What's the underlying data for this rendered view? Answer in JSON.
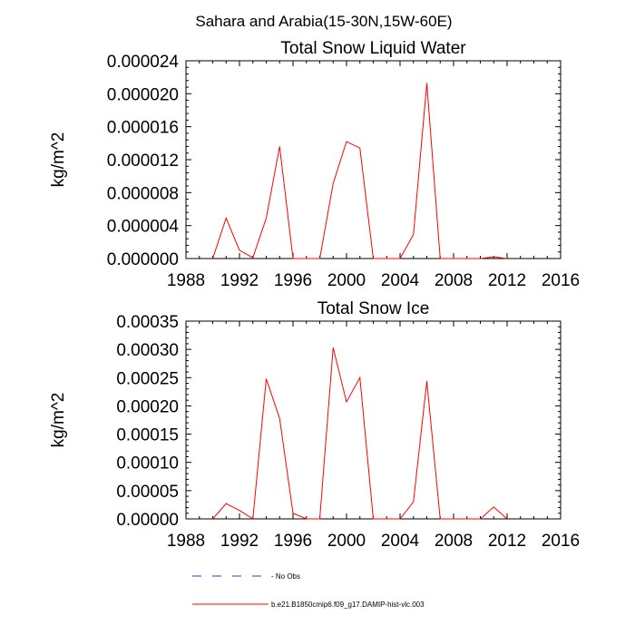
{
  "figure": {
    "title": "Sahara and Arabia(15-30N,15W-60E)"
  },
  "chart_data": [
    {
      "type": "line",
      "title": "Total Snow Liquid Water",
      "xlabel": "",
      "ylabel": "kg/m^2",
      "xlim": [
        1988,
        2016
      ],
      "ylim": [
        0,
        2.4e-05
      ],
      "x_ticks": [
        "1988",
        "1992",
        "1996",
        "2000",
        "2004",
        "2008",
        "2012",
        "2016"
      ],
      "y_ticks": [
        "0.000000",
        "0.000004",
        "0.000008",
        "0.000012",
        "0.000016",
        "0.000020",
        "0.000024"
      ],
      "series": [
        {
          "name": "b.e21.B1850cmip6.f09_g17.DAMIP-hist-vlc.003",
          "color": "#ff0000",
          "x": [
            1990,
            1991,
            1992,
            1993,
            1994,
            1995,
            1996,
            1997,
            1998,
            1999,
            2000,
            2001,
            2002,
            2003,
            2004,
            2005,
            2006,
            2007,
            2008,
            2009,
            2010,
            2011,
            2012
          ],
          "y": [
            0.0,
            4.9e-06,
            1e-06,
            1e-07,
            4.9e-06,
            1.36e-05,
            0.0,
            0.0,
            0.0,
            9.1e-06,
            1.42e-05,
            1.34e-05,
            0.0,
            0.0,
            0.0,
            2.9e-06,
            2.13e-05,
            0.0,
            0.0,
            0.0,
            0.0,
            2e-07,
            0.0
          ]
        }
      ]
    },
    {
      "type": "line",
      "title": "Total Snow Ice",
      "xlabel": "",
      "ylabel": "kg/m^2",
      "xlim": [
        1988,
        2016
      ],
      "ylim": [
        0,
        0.00035
      ],
      "x_ticks": [
        "1988",
        "1992",
        "1996",
        "2000",
        "2004",
        "2008",
        "2012",
        "2016"
      ],
      "y_ticks": [
        "0.00000",
        "0.00005",
        "0.00010",
        "0.00015",
        "0.00020",
        "0.00025",
        "0.00030",
        "0.00035"
      ],
      "series": [
        {
          "name": "b.e21.B1850cmip6.f09_g17.DAMIP-hist-vlc.003",
          "color": "#ff0000",
          "x": [
            1990,
            1991,
            1992,
            1993,
            1994,
            1995,
            1996,
            1997,
            1998,
            1999,
            2000,
            2001,
            2002,
            2003,
            2004,
            2005,
            2006,
            2007,
            2008,
            2009,
            2010,
            2011,
            2012
          ],
          "y": [
            0.0,
            2.7e-05,
            1.5e-05,
            0.0,
            0.000248,
            0.000178,
            1e-05,
            0.0,
            0.0,
            0.000303,
            0.000207,
            0.00025,
            0.0,
            0.0,
            0.0,
            3e-05,
            0.000244,
            0.0,
            0.0,
            0.0,
            0.0,
            2.1e-05,
            0.0
          ]
        }
      ]
    }
  ],
  "legend": {
    "items": [
      {
        "label": "No Obs",
        "color": "#3333cc",
        "style": "dashed"
      },
      {
        "label": "b.e21.B1850cmip6.f09_g17.DAMIP-hist-vlc.003",
        "color": "#ff0000",
        "style": "solid"
      }
    ]
  }
}
